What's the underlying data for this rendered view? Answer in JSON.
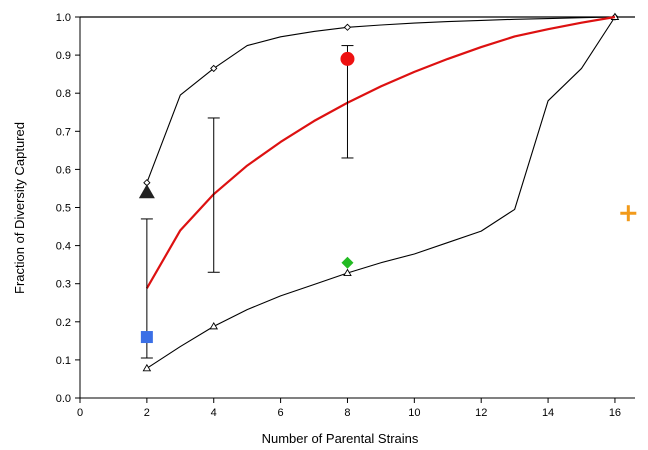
{
  "chart_data": {
    "type": "line",
    "xlabel": "Number of Parental Strains",
    "ylabel": "Fraction of Diversity Captured",
    "xlim": [
      0,
      16.6
    ],
    "ylim": [
      0,
      1.0
    ],
    "xticks": [
      "0",
      "2",
      "4",
      "6",
      "8",
      "10",
      "12",
      "14",
      "16"
    ],
    "yticks": [
      "0.0",
      "0.1",
      "0.2",
      "0.3",
      "0.4",
      "0.5",
      "0.6",
      "0.7",
      "0.8",
      "0.9",
      "1.0"
    ],
    "grid": false,
    "legend": "none",
    "series": [
      {
        "style": "line-with-diamond-markers",
        "color": "#000000",
        "x": [
          2,
          3,
          4,
          5,
          6,
          7,
          8,
          9,
          10,
          11,
          12,
          13,
          14,
          15,
          16
        ],
        "y": [
          0.565,
          0.795,
          0.865,
          0.925,
          0.948,
          0.962,
          0.973,
          0.979,
          0.984,
          0.988,
          0.991,
          0.994,
          0.996,
          0.998,
          1.0
        ],
        "markers_at": [
          2,
          4,
          8,
          16
        ]
      },
      {
        "style": "line-with-triangle-markers",
        "color": "#000000",
        "x": [
          2,
          3,
          4,
          5,
          6,
          7,
          8,
          9,
          10,
          11,
          12,
          13,
          14,
          15,
          16
        ],
        "y": [
          0.078,
          0.135,
          0.188,
          0.232,
          0.268,
          0.298,
          0.328,
          0.355,
          0.378,
          0.408,
          0.438,
          0.495,
          0.78,
          0.865,
          1.0
        ],
        "markers_at": [
          2,
          4,
          8,
          16
        ]
      },
      {
        "style": "smooth-line",
        "color": "#dd1111",
        "x": [
          2,
          3,
          4,
          5,
          6,
          7,
          8,
          9,
          10,
          11,
          12,
          13,
          14,
          15,
          16
        ],
        "y": [
          0.288,
          0.44,
          0.535,
          0.61,
          0.672,
          0.727,
          0.775,
          0.818,
          0.856,
          0.89,
          0.921,
          0.949,
          0.968,
          0.985,
          1.0
        ]
      }
    ],
    "error_bars": [
      {
        "x": 2,
        "low": 0.105,
        "high": 0.47
      },
      {
        "x": 4,
        "low": 0.33,
        "high": 0.735
      },
      {
        "x": 8,
        "low": 0.63,
        "high": 0.925
      }
    ],
    "reference_line": {
      "y": 1.0,
      "color": "#000000"
    },
    "points": [
      {
        "shape": "triangle",
        "color": "#222222",
        "x": 2,
        "y": 0.54
      },
      {
        "shape": "square",
        "color": "#3b6fe6",
        "x": 2,
        "y": 0.16
      },
      {
        "shape": "circle",
        "color": "#ee1111",
        "x": 8,
        "y": 0.89
      },
      {
        "shape": "diamond",
        "color": "#22bb22",
        "x": 8,
        "y": 0.355
      },
      {
        "shape": "plus",
        "color": "#f29a1a",
        "x": 16.4,
        "y": 0.485
      }
    ]
  }
}
